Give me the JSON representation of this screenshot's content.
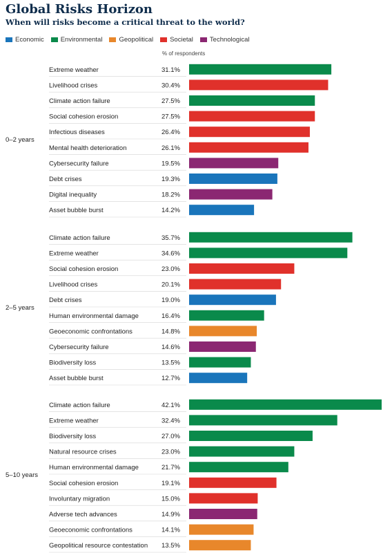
{
  "chart_data": {
    "type": "bar",
    "orientation": "horizontal",
    "title": "Global Risks Horizon",
    "subtitle": "When will risks become a critical threat to the world?",
    "unit_label": "% of respondents",
    "legend_position": "top-left",
    "grid": false,
    "xlim": [
      0,
      42.1
    ],
    "categories_legend": [
      {
        "name": "Economic",
        "color": "#1a75bb"
      },
      {
        "name": "Environmental",
        "color": "#0a8a4b"
      },
      {
        "name": "Geopolitical",
        "color": "#e8872b"
      },
      {
        "name": "Societal",
        "color": "#e0312b"
      },
      {
        "name": "Technological",
        "color": "#8b2772"
      }
    ],
    "groups": [
      {
        "label": "0–2 years",
        "items": [
          {
            "name": "Extreme weather",
            "value": 31.1,
            "label": "31.1%",
            "category": "Environmental"
          },
          {
            "name": "Livelihood crises",
            "value": 30.4,
            "label": "30.4%",
            "category": "Societal"
          },
          {
            "name": "Climate action failure",
            "value": 27.5,
            "label": "27.5%",
            "category": "Environmental"
          },
          {
            "name": "Social cohesion erosion",
            "value": 27.5,
            "label": "27.5%",
            "category": "Societal"
          },
          {
            "name": "Infectious diseases",
            "value": 26.4,
            "label": "26.4%",
            "category": "Societal"
          },
          {
            "name": "Mental health deterioration",
            "value": 26.1,
            "label": "26.1%",
            "category": "Societal"
          },
          {
            "name": "Cybersecurity failure",
            "value": 19.5,
            "label": "19.5%",
            "category": "Technological"
          },
          {
            "name": "Debt crises",
            "value": 19.3,
            "label": "19.3%",
            "category": "Economic"
          },
          {
            "name": "Digital inequality",
            "value": 18.2,
            "label": "18.2%",
            "category": "Technological"
          },
          {
            "name": "Asset bubble burst",
            "value": 14.2,
            "label": "14.2%",
            "category": "Economic"
          }
        ]
      },
      {
        "label": "2–5 years",
        "items": [
          {
            "name": "Climate action failure",
            "value": 35.7,
            "label": "35.7%",
            "category": "Environmental"
          },
          {
            "name": "Extreme weather",
            "value": 34.6,
            "label": "34.6%",
            "category": "Environmental"
          },
          {
            "name": "Social cohesion erosion",
            "value": 23.0,
            "label": "23.0%",
            "category": "Societal"
          },
          {
            "name": "Livelihood crises",
            "value": 20.1,
            "label": "20.1%",
            "category": "Societal"
          },
          {
            "name": "Debt crises",
            "value": 19.0,
            "label": "19.0%",
            "category": "Economic"
          },
          {
            "name": "Human environmental damage",
            "value": 16.4,
            "label": "16.4%",
            "category": "Environmental"
          },
          {
            "name": "Geoeconomic confrontations",
            "value": 14.8,
            "label": "14.8%",
            "category": "Geopolitical"
          },
          {
            "name": "Cybersecurity failure",
            "value": 14.6,
            "label": "14.6%",
            "category": "Technological"
          },
          {
            "name": "Biodiversity loss",
            "value": 13.5,
            "label": "13.5%",
            "category": "Environmental"
          },
          {
            "name": "Asset bubble burst",
            "value": 12.7,
            "label": "12.7%",
            "category": "Economic"
          }
        ]
      },
      {
        "label": "5–10 years",
        "items": [
          {
            "name": "Climate action failure",
            "value": 42.1,
            "label": "42.1%",
            "category": "Environmental"
          },
          {
            "name": "Extreme weather",
            "value": 32.4,
            "label": "32.4%",
            "category": "Environmental"
          },
          {
            "name": "Biodiversity loss",
            "value": 27.0,
            "label": "27.0%",
            "category": "Environmental"
          },
          {
            "name": "Natural resource crises",
            "value": 23.0,
            "label": "23.0%",
            "category": "Environmental"
          },
          {
            "name": "Human environmental damage",
            "value": 21.7,
            "label": "21.7%",
            "category": "Environmental"
          },
          {
            "name": "Social cohesion erosion",
            "value": 19.1,
            "label": "19.1%",
            "category": "Societal"
          },
          {
            "name": "Involuntary migration",
            "value": 15.0,
            "label": "15.0%",
            "category": "Societal"
          },
          {
            "name": "Adverse tech advances",
            "value": 14.9,
            "label": "14.9%",
            "category": "Technological"
          },
          {
            "name": "Geoeconomic confrontations",
            "value": 14.1,
            "label": "14.1%",
            "category": "Geopolitical"
          },
          {
            "name": "Geopolitical resource contestation",
            "value": 13.5,
            "label": "13.5%",
            "category": "Geopolitical"
          }
        ]
      }
    ]
  }
}
